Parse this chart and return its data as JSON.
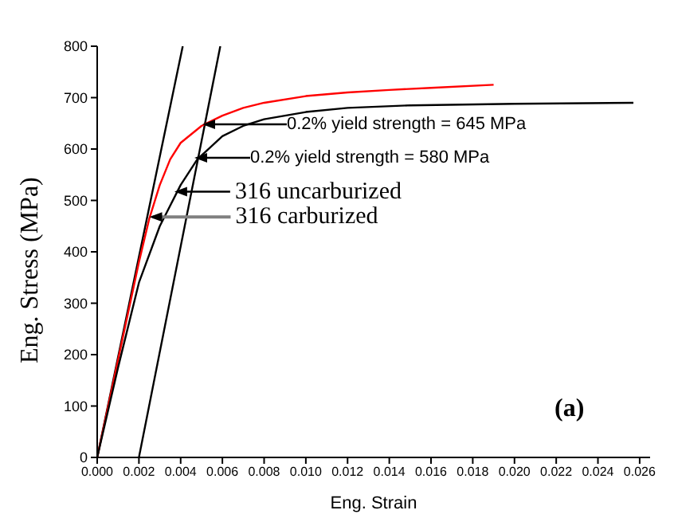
{
  "chart_data": {
    "type": "line",
    "xlabel": "Eng. Strain",
    "ylabel": "Eng. Stress (MPa)",
    "xlim": [
      0,
      0.0265
    ],
    "ylim": [
      0,
      800
    ],
    "xticks": [
      {
        "value": 0,
        "label": "0.000"
      },
      {
        "value": 0.002,
        "label": "0.002"
      },
      {
        "value": 0.004,
        "label": "0.004"
      },
      {
        "value": 0.006,
        "label": "0.006"
      },
      {
        "value": 0.008,
        "label": "0.008"
      },
      {
        "value": 0.01,
        "label": "0.010"
      },
      {
        "value": 0.012,
        "label": "0.012"
      },
      {
        "value": 0.014,
        "label": "0.014"
      },
      {
        "value": 0.016,
        "label": "0.016"
      },
      {
        "value": 0.018,
        "label": "0.018"
      },
      {
        "value": 0.02,
        "label": "0.020"
      },
      {
        "value": 0.022,
        "label": "0.022"
      },
      {
        "value": 0.024,
        "label": "0.024"
      },
      {
        "value": 0.026,
        "label": "0.026"
      }
    ],
    "yticks": [
      0,
      100,
      200,
      300,
      400,
      500,
      600,
      700,
      800
    ],
    "grid": false,
    "legend": false,
    "marker": "none",
    "series": [
      {
        "color": "#000000",
        "x": [
          0,
          0.0041
        ],
        "values": [
          0,
          800
        ]
      },
      {
        "color": "#000000",
        "x": [
          0.002,
          0.0059
        ],
        "values": [
          0,
          800
        ]
      },
      {
        "color": "#ff0000",
        "x": [
          0,
          0.001,
          0.002,
          0.0025,
          0.003,
          0.0035,
          0.004,
          0.005,
          0.006,
          0.007,
          0.008,
          0.01,
          0.012,
          0.014,
          0.016,
          0.019
        ],
        "values": [
          0,
          190,
          380,
          465,
          530,
          580,
          612,
          645,
          665,
          680,
          690,
          703,
          710,
          715,
          719,
          725
        ]
      },
      {
        "color": "#000000",
        "x": [
          0,
          0.001,
          0.002,
          0.003,
          0.004,
          0.0048,
          0.006,
          0.007,
          0.008,
          0.01,
          0.012,
          0.015,
          0.02,
          0.0257
        ],
        "values": [
          0,
          175,
          340,
          450,
          530,
          580,
          625,
          645,
          658,
          672,
          680,
          685,
          688,
          690
        ]
      }
    ],
    "annotations": [
      "0.2% yield strength = 645 MPa",
      "0.2% yield strength = 580 MPa",
      {
        "text": "316 uncarburized",
        "x": 0.0037,
        "y": 517
      },
      {
        "text": "316 carburized",
        "x": 0.0025,
        "y": 468
      },
      "(a)"
    ]
  }
}
